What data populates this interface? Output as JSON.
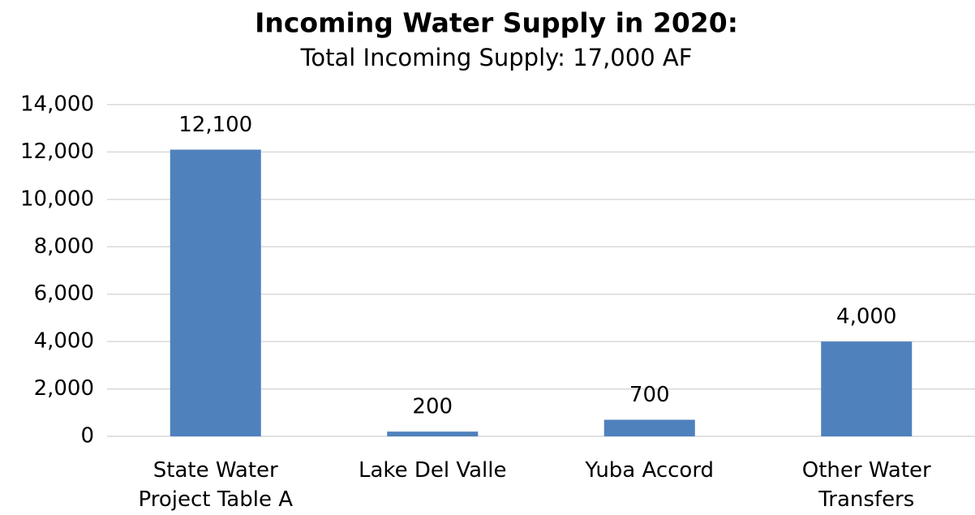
{
  "chart_data": {
    "type": "bar",
    "title": "Incoming Water Supply in 2020:",
    "subtitle": "Total Incoming Supply: 17,000 AF",
    "categories": [
      "State Water Project Table A",
      "Lake Del Valle",
      "Yuba Accord",
      "Other Water Transfers"
    ],
    "values": [
      12100,
      200,
      700,
      4000
    ],
    "value_labels": [
      "12,100",
      "200",
      "700",
      "4,000"
    ],
    "color": "#4f81bd",
    "ylim": [
      0,
      14000
    ],
    "yticks": [
      0,
      {
        "value": 2000,
        "label": "2,000"
      },
      {
        "value": 4000,
        "label": "4,000"
      },
      {
        "value": 6000,
        "label": "6,000"
      },
      {
        "value": 8000,
        "label": "8,000"
      },
      {
        "value": 10000,
        "label": "10,000"
      },
      {
        "value": 12000,
        "label": "12,000"
      },
      {
        "value": 14000,
        "label": "14,000"
      }
    ],
    "grid": true
  }
}
